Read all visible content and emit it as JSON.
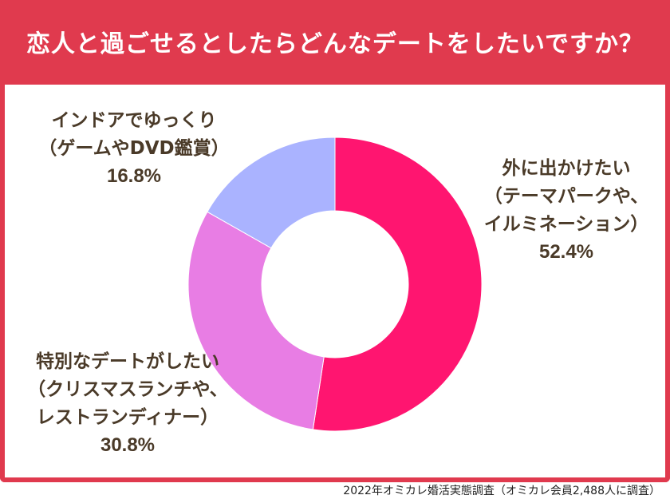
{
  "header": {
    "title": "恋人と過ごせるとしたらどんなデートをしたいですか？"
  },
  "chart_data": {
    "type": "pie",
    "variant": "donut",
    "title": "恋人と過ごせるとしたらどんなデートをしたいですか？",
    "slices": [
      {
        "label_lines": [
          "外に出かけたい",
          "（テーマパークや、",
          "イルミネーション）"
        ],
        "value": 52.4,
        "value_text": "52.4%",
        "color": "#ff1570"
      },
      {
        "label_lines": [
          "特別なデートがしたい",
          "（クリスマスランチや、",
          "レストランディナー）"
        ],
        "value": 30.8,
        "value_text": "30.8%",
        "color": "#e87de4"
      },
      {
        "label_lines": [
          "インドアでゆっくり",
          "（ゲームやDVD鑑賞）"
        ],
        "value": 16.8,
        "value_text": "16.8%",
        "color": "#aab3ff"
      }
    ]
  },
  "footer": {
    "source": "2022年オミカレ婚活実態調査（オミカレ会員2,488人に調査）"
  },
  "colors": {
    "accent": "#e03a4e",
    "label_text": "#4a3a28"
  }
}
